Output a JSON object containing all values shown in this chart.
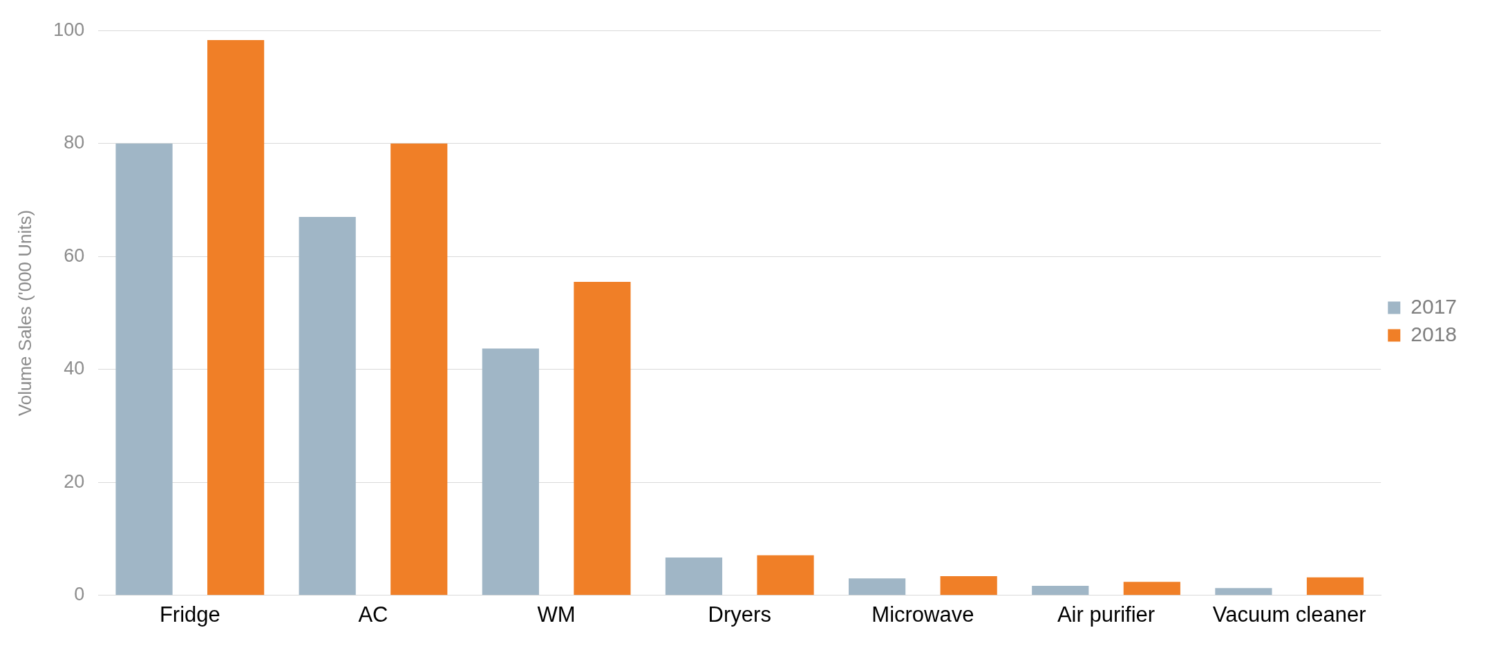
{
  "chart_data": {
    "type": "bar",
    "ylabel": "Volume Sales ('000 Units)",
    "categories": [
      "Fridge",
      "AC",
      "WM",
      "Dryers",
      "Microwave",
      "Air purifier",
      "Vacuum cleaner"
    ],
    "series": [
      {
        "name": "2017",
        "color": "#a0b6c6",
        "values": [
          80,
          67,
          43.7,
          6.7,
          3,
          1.7,
          1.3
        ]
      },
      {
        "name": "2018",
        "color": "#f07f27",
        "values": [
          98.3,
          80,
          55.5,
          7.1,
          3.4,
          2.4,
          3.2
        ]
      }
    ],
    "ylim": [
      0,
      100
    ],
    "yticks": [
      0,
      20,
      40,
      60,
      80,
      100
    ],
    "grid": "y",
    "legend": "right"
  }
}
